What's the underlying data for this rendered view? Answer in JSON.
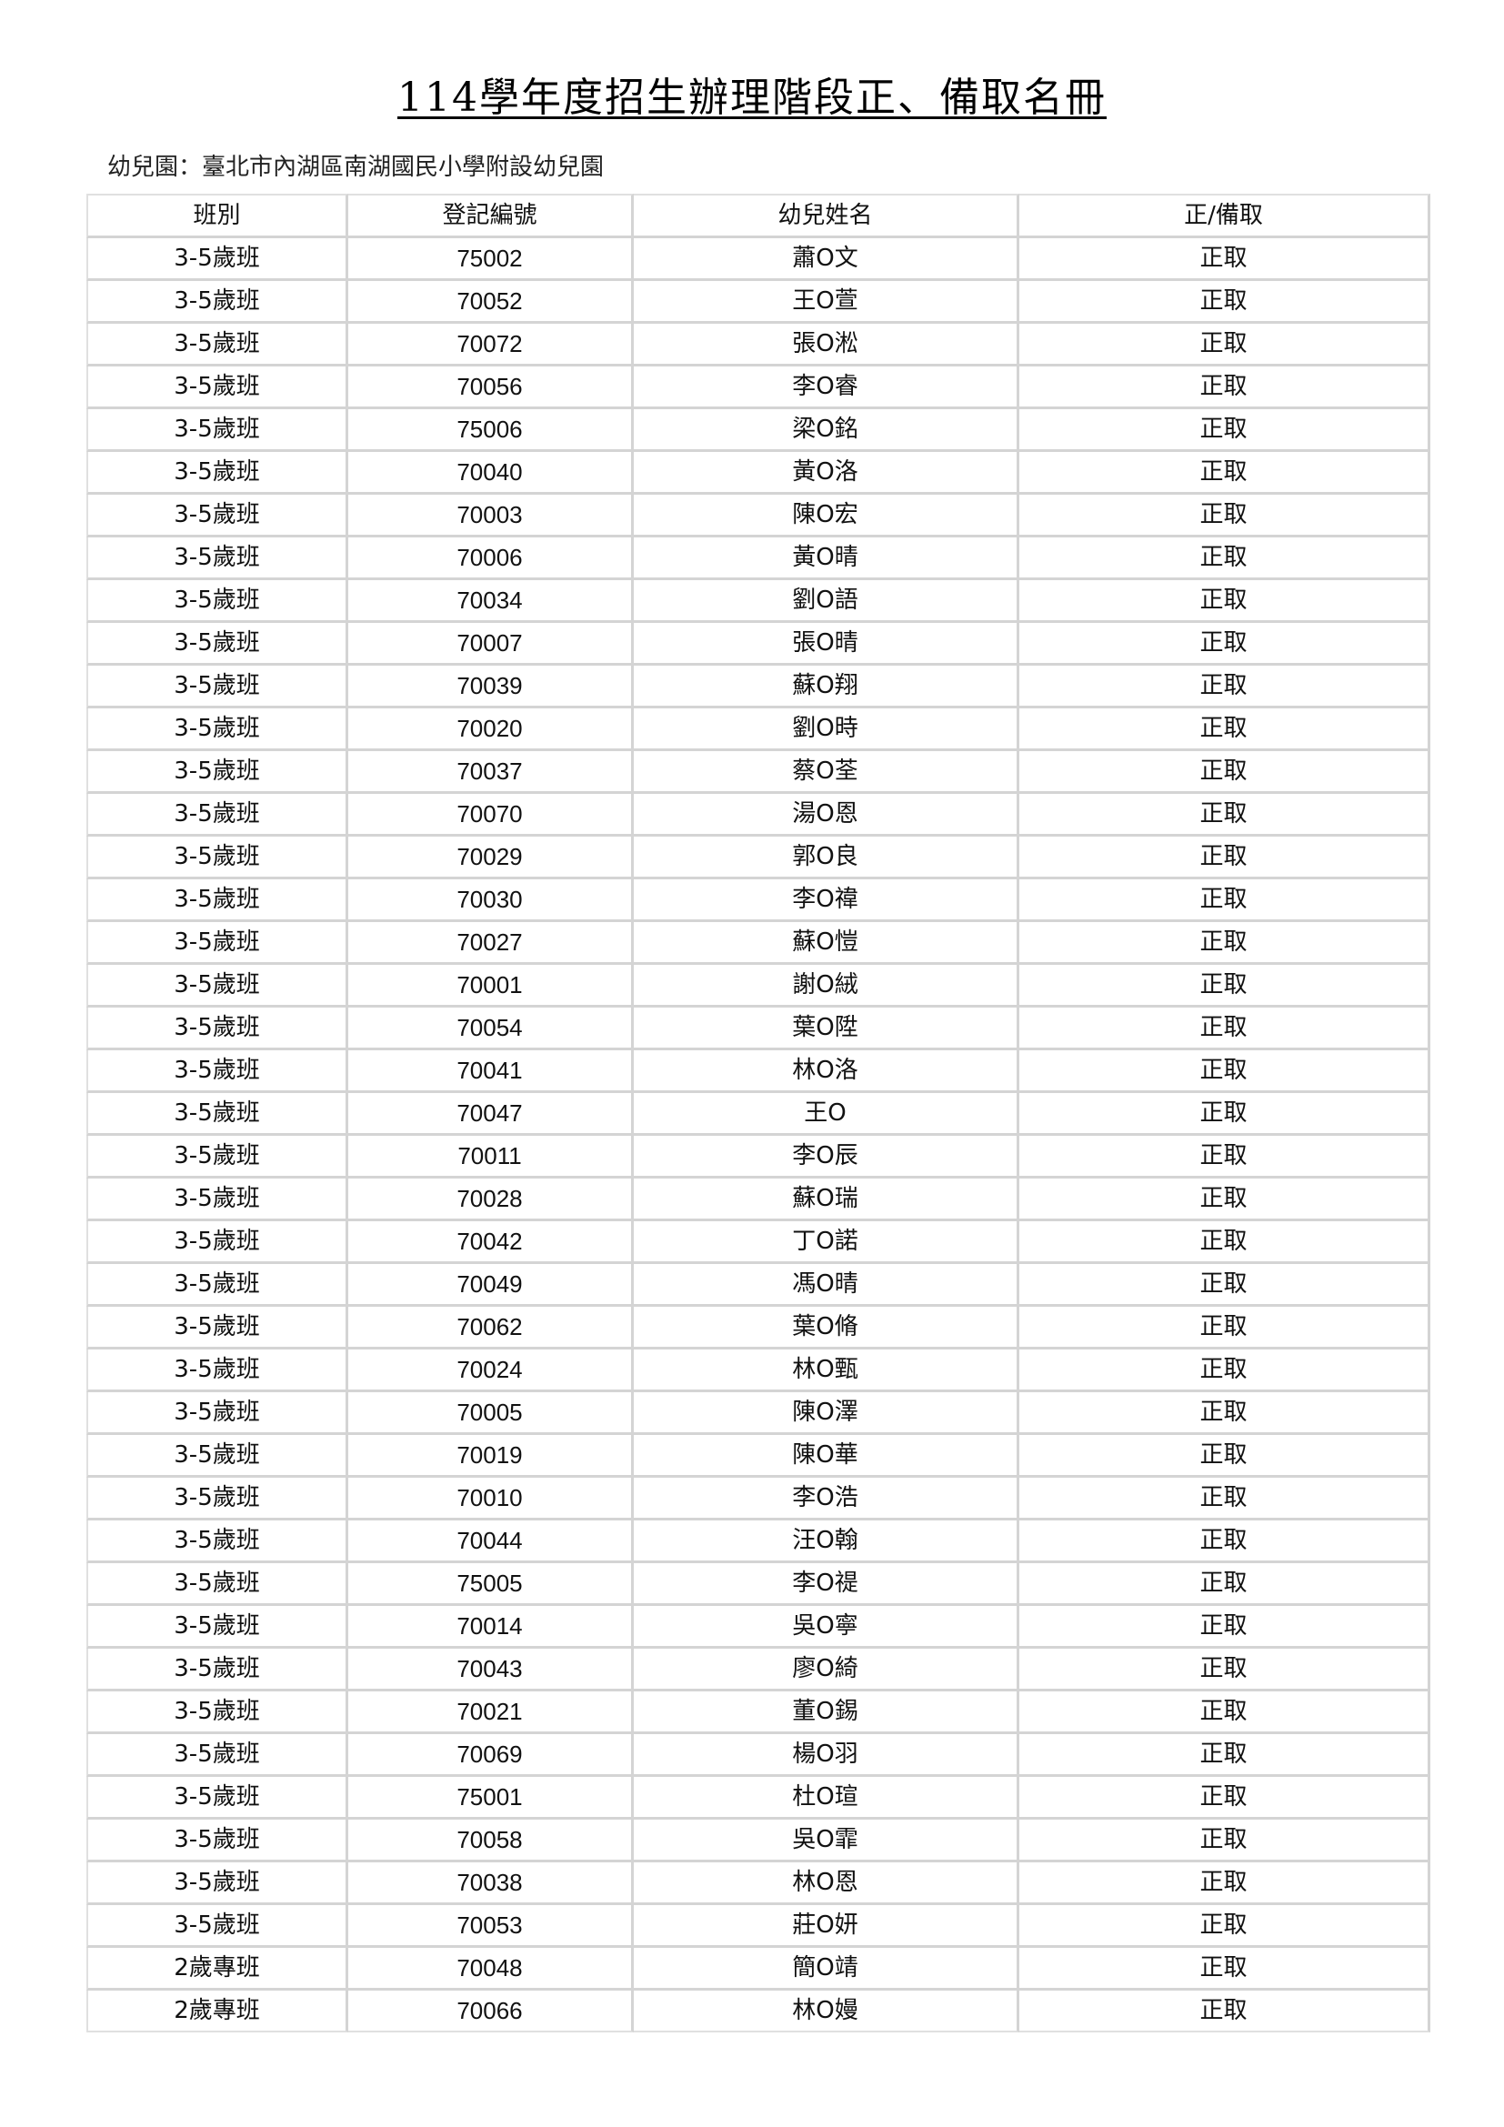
{
  "title": "114學年度招生辦理階段正、備取名冊",
  "school": "幼兒園：臺北市內湖區南湖國民小學附設幼兒園",
  "columns": [
    "班別",
    "登記編號",
    "幼兒姓名",
    "正/備取"
  ],
  "rows": [
    [
      "3-5歲班",
      "75002",
      "蕭O文",
      "正取"
    ],
    [
      "3-5歲班",
      "70052",
      "王O萱",
      "正取"
    ],
    [
      "3-5歲班",
      "70072",
      "張O淞",
      "正取"
    ],
    [
      "3-5歲班",
      "70056",
      "李O睿",
      "正取"
    ],
    [
      "3-5歲班",
      "75006",
      "梁O銘",
      "正取"
    ],
    [
      "3-5歲班",
      "70040",
      "黃O洛",
      "正取"
    ],
    [
      "3-5歲班",
      "70003",
      "陳O宏",
      "正取"
    ],
    [
      "3-5歲班",
      "70006",
      "黃O晴",
      "正取"
    ],
    [
      "3-5歲班",
      "70034",
      "劉O語",
      "正取"
    ],
    [
      "3-5歲班",
      "70007",
      "張O晴",
      "正取"
    ],
    [
      "3-5歲班",
      "70039",
      "蘇O翔",
      "正取"
    ],
    [
      "3-5歲班",
      "70020",
      "劉O時",
      "正取"
    ],
    [
      "3-5歲班",
      "70037",
      "蔡O荃",
      "正取"
    ],
    [
      "3-5歲班",
      "70070",
      "湯O恩",
      "正取"
    ],
    [
      "3-5歲班",
      "70029",
      "郭O良",
      "正取"
    ],
    [
      "3-5歲班",
      "70030",
      "李O禕",
      "正取"
    ],
    [
      "3-5歲班",
      "70027",
      "蘇O愷",
      "正取"
    ],
    [
      "3-5歲班",
      "70001",
      "謝O絨",
      "正取"
    ],
    [
      "3-5歲班",
      "70054",
      "葉O陞",
      "正取"
    ],
    [
      "3-5歲班",
      "70041",
      "林O洛",
      "正取"
    ],
    [
      "3-5歲班",
      "70047",
      "王O",
      "正取"
    ],
    [
      "3-5歲班",
      "70011",
      "李O辰",
      "正取"
    ],
    [
      "3-5歲班",
      "70028",
      "蘇O瑞",
      "正取"
    ],
    [
      "3-5歲班",
      "70042",
      "丁O諾",
      "正取"
    ],
    [
      "3-5歲班",
      "70049",
      "馮O晴",
      "正取"
    ],
    [
      "3-5歲班",
      "70062",
      "葉O脩",
      "正取"
    ],
    [
      "3-5歲班",
      "70024",
      "林O甄",
      "正取"
    ],
    [
      "3-5歲班",
      "70005",
      "陳O澤",
      "正取"
    ],
    [
      "3-5歲班",
      "70019",
      "陳O華",
      "正取"
    ],
    [
      "3-5歲班",
      "70010",
      "李O浩",
      "正取"
    ],
    [
      "3-5歲班",
      "70044",
      "汪O翰",
      "正取"
    ],
    [
      "3-5歲班",
      "75005",
      "李O禔",
      "正取"
    ],
    [
      "3-5歲班",
      "70014",
      "吳O寧",
      "正取"
    ],
    [
      "3-5歲班",
      "70043",
      "廖O綺",
      "正取"
    ],
    [
      "3-5歲班",
      "70021",
      "董O錫",
      "正取"
    ],
    [
      "3-5歲班",
      "70069",
      "楊O羽",
      "正取"
    ],
    [
      "3-5歲班",
      "75001",
      "杜O瑄",
      "正取"
    ],
    [
      "3-5歲班",
      "70058",
      "吳O霏",
      "正取"
    ],
    [
      "3-5歲班",
      "70038",
      "林O恩",
      "正取"
    ],
    [
      "3-5歲班",
      "70053",
      "莊O妍",
      "正取"
    ],
    [
      "2歲專班",
      "70048",
      "簡O靖",
      "正取"
    ],
    [
      "2歲專班",
      "70066",
      "林O嫚",
      "正取"
    ]
  ]
}
